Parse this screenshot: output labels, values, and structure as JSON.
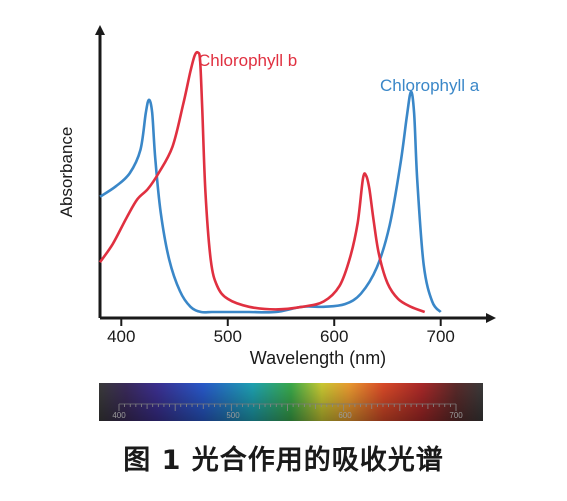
{
  "chart_data": {
    "type": "line",
    "xlabel": "Wavelength (nm)",
    "ylabel": "Absorbance",
    "xlim": [
      380,
      720
    ],
    "ylim": [
      0,
      1
    ],
    "x_ticks": [
      400,
      500,
      600,
      700
    ],
    "grid": false,
    "legend": "direct labels at peaks",
    "series": [
      {
        "name": "Chlorophyll a",
        "color": "#3a87c8",
        "x": [
          380,
          395,
          408,
          418,
          423,
          426,
          429,
          432,
          437,
          445,
          455,
          465,
          475,
          485,
          500,
          520,
          545,
          570,
          590,
          610,
          625,
          640,
          652,
          662,
          668,
          672,
          675,
          678,
          684,
          692,
          700
        ],
        "y": [
          0.44,
          0.48,
          0.53,
          0.62,
          0.76,
          0.81,
          0.76,
          0.58,
          0.38,
          0.2,
          0.08,
          0.02,
          0.0,
          0.0,
          0.0,
          0.0,
          0.0,
          0.02,
          0.02,
          0.03,
          0.07,
          0.17,
          0.33,
          0.56,
          0.74,
          0.84,
          0.76,
          0.5,
          0.18,
          0.04,
          0.0
        ]
      },
      {
        "name": "Chlorophyll b",
        "color": "#e03040",
        "x": [
          380,
          392,
          405,
          415,
          425,
          435,
          448,
          458,
          465,
          469,
          472,
          474,
          476,
          479,
          484,
          490,
          500,
          520,
          545,
          570,
          590,
          605,
          615,
          622,
          627,
          630,
          633,
          637,
          642,
          650,
          660,
          672,
          685
        ],
        "y": [
          0.19,
          0.26,
          0.36,
          0.43,
          0.47,
          0.53,
          0.63,
          0.79,
          0.92,
          0.98,
          0.99,
          0.96,
          0.78,
          0.46,
          0.2,
          0.1,
          0.05,
          0.02,
          0.01,
          0.02,
          0.04,
          0.1,
          0.21,
          0.34,
          0.51,
          0.52,
          0.47,
          0.35,
          0.22,
          0.11,
          0.05,
          0.02,
          0.0
        ]
      }
    ]
  },
  "spectrum_bar": {
    "tick_labels": [
      "400",
      "500",
      "600",
      "700"
    ]
  },
  "caption": "图 1  光合作用的吸收光谱"
}
